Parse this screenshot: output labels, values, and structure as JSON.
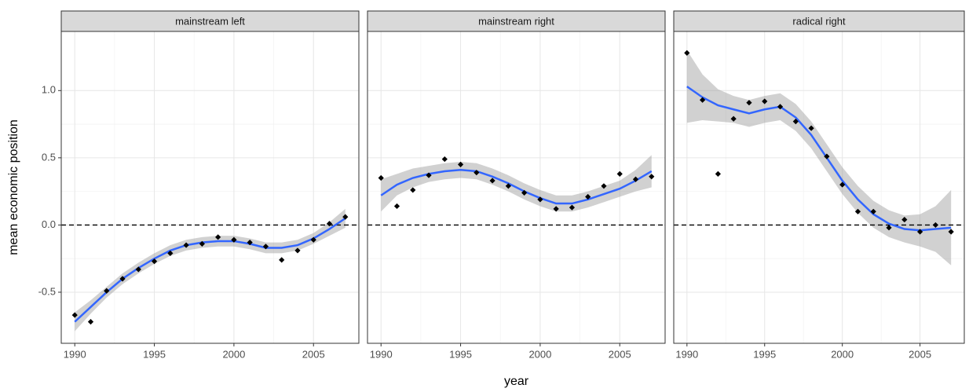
{
  "chart_data": [
    {
      "type": "scatter",
      "title": "mainstream left",
      "ylabel": "mean economic position",
      "x": [
        1990,
        1991,
        1992,
        1993,
        1994,
        1995,
        1996,
        1997,
        1998,
        1999,
        2000,
        2001,
        2002,
        2003,
        2004,
        2005,
        2006,
        2007
      ],
      "values": [
        -0.67,
        -0.72,
        -0.49,
        -0.4,
        -0.33,
        -0.27,
        -0.21,
        -0.15,
        -0.14,
        -0.09,
        -0.11,
        -0.13,
        -0.16,
        -0.26,
        -0.19,
        -0.11,
        0.01,
        0.06
      ],
      "color": "#000000",
      "fit": {
        "color": "#3366ff",
        "band_color": "#999999",
        "values": [
          -0.72,
          -0.61,
          -0.5,
          -0.4,
          -0.32,
          -0.25,
          -0.19,
          -0.15,
          -0.13,
          -0.12,
          -0.12,
          -0.14,
          -0.17,
          -0.17,
          -0.15,
          -0.1,
          -0.03,
          0.05
        ],
        "lower": [
          -0.79,
          -0.66,
          -0.54,
          -0.44,
          -0.36,
          -0.29,
          -0.23,
          -0.19,
          -0.17,
          -0.16,
          -0.16,
          -0.18,
          -0.21,
          -0.21,
          -0.19,
          -0.14,
          -0.08,
          -0.02
        ],
        "upper": [
          -0.65,
          -0.56,
          -0.46,
          -0.36,
          -0.28,
          -0.21,
          -0.15,
          -0.11,
          -0.09,
          -0.08,
          -0.08,
          -0.1,
          -0.13,
          -0.13,
          -0.11,
          -0.06,
          0.02,
          0.12
        ]
      },
      "hline": 0,
      "xlim": [
        1989.15,
        2007.85
      ],
      "ylim": [
        -0.88,
        1.44
      ],
      "xticks": [
        1990,
        1995,
        2000,
        2005
      ],
      "yticks": [
        -0.5,
        {
          "value": 0,
          "label": "0.0"
        },
        0.5,
        {
          "value": 1,
          "label": "1.0"
        }
      ],
      "grid": true
    },
    {
      "type": "scatter",
      "title": "mainstream right",
      "xlabel": "year",
      "x": [
        1990,
        1991,
        1992,
        1993,
        1994,
        1995,
        1996,
        1997,
        1998,
        1999,
        2000,
        2001,
        2002,
        2003,
        2004,
        2005,
        2006,
        2007
      ],
      "values": [
        0.35,
        0.14,
        0.26,
        0.37,
        0.49,
        0.45,
        0.39,
        0.33,
        0.29,
        0.24,
        0.19,
        0.12,
        0.13,
        0.21,
        0.29,
        0.38,
        0.34,
        0.36
      ],
      "color": "#000000",
      "fit": {
        "color": "#3366ff",
        "band_color": "#999999",
        "values": [
          0.22,
          0.3,
          0.35,
          0.38,
          0.4,
          0.41,
          0.4,
          0.36,
          0.31,
          0.25,
          0.2,
          0.16,
          0.16,
          0.19,
          0.23,
          0.27,
          0.33,
          0.4
        ],
        "lower": [
          0.1,
          0.22,
          0.28,
          0.32,
          0.34,
          0.35,
          0.34,
          0.3,
          0.25,
          0.19,
          0.14,
          0.1,
          0.1,
          0.13,
          0.17,
          0.21,
          0.25,
          0.28
        ],
        "upper": [
          0.34,
          0.38,
          0.42,
          0.44,
          0.46,
          0.47,
          0.46,
          0.42,
          0.37,
          0.31,
          0.26,
          0.22,
          0.22,
          0.25,
          0.29,
          0.33,
          0.41,
          0.52
        ]
      },
      "hline": 0,
      "xlim": [
        1989.15,
        2007.85
      ],
      "ylim": [
        -0.88,
        1.44
      ],
      "xticks": [
        1990,
        1995,
        2000,
        2005
      ],
      "yticks": [
        -0.5,
        {
          "value": 0,
          "label": "0.0"
        },
        0.5,
        {
          "value": 1,
          "label": "1.0"
        }
      ],
      "grid": true
    },
    {
      "type": "scatter",
      "title": "radical right",
      "x": [
        1990,
        1991,
        1992,
        1993,
        1994,
        1995,
        1996,
        1997,
        1998,
        1999,
        2000,
        2001,
        2002,
        2003,
        2004,
        2005,
        2006,
        2007
      ],
      "values": [
        1.28,
        0.93,
        0.38,
        0.79,
        0.91,
        0.92,
        0.88,
        0.77,
        0.72,
        0.51,
        0.3,
        0.1,
        0.1,
        -0.02,
        0.04,
        -0.05,
        0.0,
        -0.05
      ],
      "color": "#000000",
      "fit": {
        "color": "#3366ff",
        "band_color": "#999999",
        "values": [
          1.03,
          0.95,
          0.89,
          0.86,
          0.83,
          0.86,
          0.88,
          0.8,
          0.67,
          0.5,
          0.33,
          0.19,
          0.08,
          0.01,
          -0.03,
          -0.04,
          -0.03,
          -0.02
        ],
        "lower": [
          0.76,
          0.78,
          0.77,
          0.76,
          0.73,
          0.76,
          0.78,
          0.7,
          0.57,
          0.4,
          0.23,
          0.09,
          -0.02,
          -0.09,
          -0.13,
          -0.16,
          -0.2,
          -0.3
        ],
        "upper": [
          1.3,
          1.12,
          1.01,
          0.96,
          0.93,
          0.96,
          0.98,
          0.9,
          0.77,
          0.6,
          0.43,
          0.29,
          0.18,
          0.11,
          0.07,
          0.08,
          0.14,
          0.26
        ]
      },
      "hline": 0,
      "xlim": [
        1989.15,
        2007.85
      ],
      "ylim": [
        -0.88,
        1.44
      ],
      "xticks": [
        1990,
        1995,
        2000,
        2005
      ],
      "yticks": [
        -0.5,
        {
          "value": 0,
          "label": "0.0"
        },
        0.5,
        {
          "value": 1,
          "label": "1.0"
        }
      ],
      "grid": true
    }
  ]
}
